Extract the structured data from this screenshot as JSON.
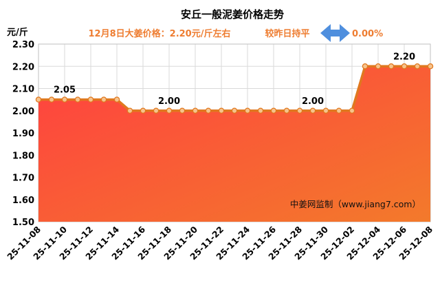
{
  "chart_data": {
    "type": "area",
    "title": "安丘一般泥姜价格走势",
    "subtitle_price": "12月8日大姜价格：2.20元/斤左右",
    "subtitle_change_label": "较昨日持平",
    "subtitle_change_value": "0.00%",
    "y_unit": "元/斤",
    "watermark": "中姜网监制（www.jiang7.com）",
    "ylim": [
      1.5,
      2.3
    ],
    "yticks": [
      "1.50",
      "1.60",
      "1.70",
      "1.80",
      "1.90",
      "2.00",
      "2.10",
      "2.20",
      "2.30"
    ],
    "grid": true,
    "x": [
      "25-11-08",
      "25-11-09",
      "25-11-10",
      "25-11-11",
      "25-11-12",
      "25-11-13",
      "25-11-14",
      "25-11-15",
      "25-11-16",
      "25-11-17",
      "25-11-18",
      "25-11-19",
      "25-11-20",
      "25-11-21",
      "25-11-22",
      "25-11-23",
      "25-11-24",
      "25-11-25",
      "25-11-26",
      "25-11-27",
      "25-11-28",
      "25-11-29",
      "25-11-30",
      "25-12-01",
      "25-12-02",
      "25-12-03",
      "25-12-04",
      "25-12-05",
      "25-12-06",
      "25-12-07",
      "25-12-08"
    ],
    "xtick_labels": [
      "25-11-08",
      "25-11-10",
      "25-11-12",
      "25-11-14",
      "25-11-16",
      "25-11-18",
      "25-11-20",
      "25-11-22",
      "25-11-24",
      "25-11-26",
      "25-11-28",
      "25-11-30",
      "25-12-02",
      "25-12-04",
      "25-12-06",
      "25-12-08"
    ],
    "series": [
      {
        "values": [
          2.05,
          2.05,
          2.05,
          2.05,
          2.05,
          2.05,
          2.05,
          2.0,
          2.0,
          2.0,
          2.0,
          2.0,
          2.0,
          2.0,
          2.0,
          2.0,
          2.0,
          2.0,
          2.0,
          2.0,
          2.0,
          2.0,
          2.0,
          2.0,
          2.0,
          2.2,
          2.2,
          2.2,
          2.2,
          2.2,
          2.2
        ]
      }
    ],
    "data_labels": [
      {
        "index": 2,
        "text": "2.05"
      },
      {
        "index": 10,
        "text": "2.00"
      },
      {
        "index": 21,
        "text": "2.00"
      },
      {
        "index": 28,
        "text": "2.20"
      }
    ],
    "colors": {
      "line": "#e0781f",
      "marker_fill": "#f6c38d",
      "fill_top": "#ff3b3b",
      "fill_bottom": "#f5792a",
      "arrow": "#4f8fde",
      "grid": "#d9d9d9"
    },
    "icons": {
      "change_arrow": "double-arrow-icon"
    }
  }
}
